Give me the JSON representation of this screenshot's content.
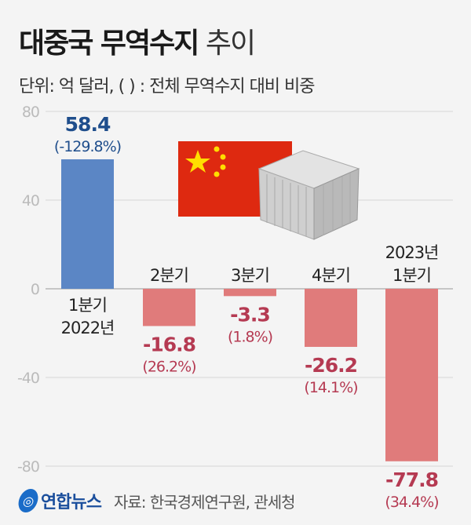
{
  "chart_data": {
    "type": "bar",
    "title": "대중국 무역수지",
    "title_suffix": "추이",
    "subtitle": "단위: 억 달러, ( ) : 전체 무역수지 대비 비중",
    "categories": [
      [
        "1분기",
        "2022년"
      ],
      [
        "2분기"
      ],
      [
        "3분기"
      ],
      [
        "4분기"
      ],
      [
        "2023년",
        "1분기"
      ]
    ],
    "values": [
      58.4,
      -16.8,
      -3.3,
      -26.2,
      -77.8
    ],
    "value_labels": [
      "58.4",
      "-16.8",
      "-3.3",
      "-26.2",
      "-77.8"
    ],
    "share_labels": [
      "(-129.8%)",
      "(26.2%)",
      "(1.8%)",
      "(14.1%)",
      "(34.4%)"
    ],
    "ylim": [
      -80,
      80
    ],
    "yticks": [
      "80",
      "40",
      "0",
      "-40",
      "-80"
    ],
    "grid": true,
    "colors": {
      "positive": "#5b86c5",
      "negative": "#e07b7b",
      "positive_label": "#1f4e8c",
      "negative_label": "#b53a52",
      "axis": "#bbbbbb"
    }
  },
  "footer": {
    "logo": "연합뉴스",
    "source": "자료: 한국경제연구원, 관세청"
  }
}
